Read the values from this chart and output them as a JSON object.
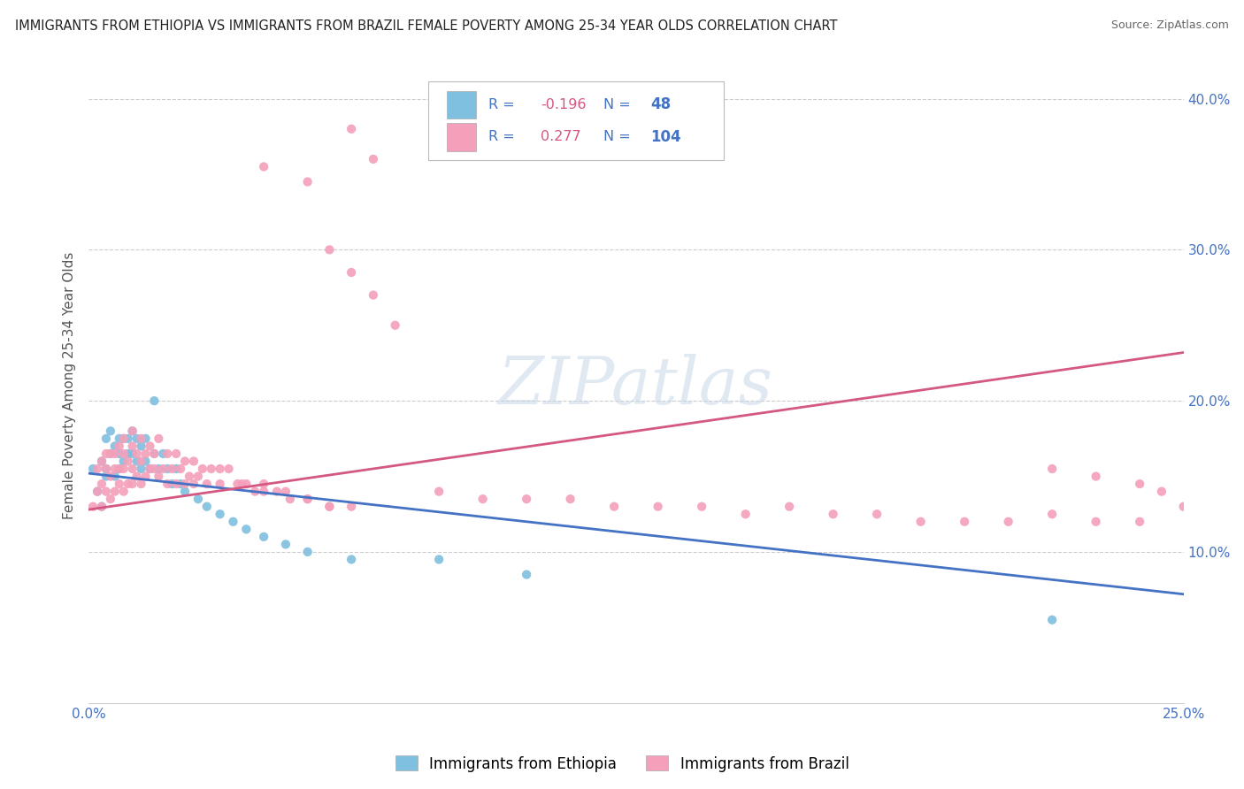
{
  "title": "IMMIGRANTS FROM ETHIOPIA VS IMMIGRANTS FROM BRAZIL FEMALE POVERTY AMONG 25-34 YEAR OLDS CORRELATION CHART",
  "source": "Source: ZipAtlas.com",
  "ylabel": "Female Poverty Among 25-34 Year Olds",
  "xlim": [
    0.0,
    0.25
  ],
  "ylim": [
    0.0,
    0.42
  ],
  "xticks": [
    0.0,
    0.05,
    0.1,
    0.15,
    0.2,
    0.25
  ],
  "xticklabels": [
    "0.0%",
    "",
    "",
    "",
    "",
    "25.0%"
  ],
  "yticks": [
    0.0,
    0.1,
    0.2,
    0.3,
    0.4
  ],
  "yticklabels": [
    "",
    "10.0%",
    "20.0%",
    "30.0%",
    "40.0%"
  ],
  "ethiopia_color": "#7fbfdf",
  "brazil_color": "#f4a0ba",
  "ethiopia_line_color": "#4472c4",
  "brazil_line_color": "#d45882",
  "legend_ethiopia_R": "-0.196",
  "legend_ethiopia_N": "48",
  "legend_brazil_R": "0.277",
  "legend_brazil_N": "104",
  "legend_label_ethiopia": "Immigrants from Ethiopia",
  "legend_label_brazil": "Immigrants from Brazil",
  "watermark": "ZIPatlas",
  "background_color": "#ffffff",
  "grid_color": "#cccccc",
  "tick_color": "#4472c4",
  "title_fontsize": 11,
  "eth_line_x0": 0.0,
  "eth_line_y0": 0.152,
  "eth_line_x1": 0.25,
  "eth_line_y1": 0.072,
  "bra_line_x0": 0.0,
  "bra_line_y0": 0.128,
  "bra_line_x1": 0.25,
  "bra_line_y1": 0.232,
  "ethiopia_x": [
    0.001,
    0.002,
    0.003,
    0.003,
    0.004,
    0.004,
    0.004,
    0.005,
    0.005,
    0.006,
    0.006,
    0.007,
    0.007,
    0.007,
    0.008,
    0.008,
    0.009,
    0.009,
    0.01,
    0.01,
    0.011,
    0.011,
    0.012,
    0.012,
    0.013,
    0.013,
    0.014,
    0.015,
    0.015,
    0.016,
    0.017,
    0.018,
    0.019,
    0.02,
    0.021,
    0.022,
    0.025,
    0.027,
    0.03,
    0.033,
    0.036,
    0.04,
    0.045,
    0.05,
    0.06,
    0.08,
    0.1,
    0.22
  ],
  "ethiopia_y": [
    0.155,
    0.14,
    0.13,
    0.16,
    0.155,
    0.175,
    0.15,
    0.165,
    0.18,
    0.15,
    0.17,
    0.155,
    0.165,
    0.175,
    0.16,
    0.175,
    0.165,
    0.175,
    0.165,
    0.18,
    0.16,
    0.175,
    0.155,
    0.17,
    0.16,
    0.175,
    0.155,
    0.165,
    0.2,
    0.155,
    0.165,
    0.155,
    0.145,
    0.155,
    0.145,
    0.14,
    0.135,
    0.13,
    0.125,
    0.12,
    0.115,
    0.11,
    0.105,
    0.1,
    0.095,
    0.095,
    0.085,
    0.055
  ],
  "brazil_x": [
    0.001,
    0.002,
    0.002,
    0.003,
    0.003,
    0.003,
    0.004,
    0.004,
    0.004,
    0.005,
    0.005,
    0.005,
    0.006,
    0.006,
    0.006,
    0.007,
    0.007,
    0.007,
    0.008,
    0.008,
    0.008,
    0.009,
    0.009,
    0.01,
    0.01,
    0.01,
    0.011,
    0.011,
    0.012,
    0.012,
    0.013,
    0.013,
    0.014,
    0.015,
    0.015,
    0.016,
    0.017,
    0.018,
    0.019,
    0.02,
    0.021,
    0.022,
    0.023,
    0.024,
    0.025,
    0.026,
    0.027,
    0.028,
    0.03,
    0.032,
    0.034,
    0.036,
    0.038,
    0.04,
    0.043,
    0.046,
    0.05,
    0.055,
    0.06,
    0.065,
    0.04,
    0.05,
    0.055,
    0.06,
    0.065,
    0.07,
    0.08,
    0.09,
    0.1,
    0.11,
    0.12,
    0.13,
    0.14,
    0.15,
    0.16,
    0.17,
    0.18,
    0.19,
    0.2,
    0.21,
    0.22,
    0.23,
    0.24,
    0.008,
    0.01,
    0.012,
    0.014,
    0.016,
    0.018,
    0.02,
    0.022,
    0.024,
    0.03,
    0.035,
    0.04,
    0.045,
    0.05,
    0.055,
    0.06,
    0.22,
    0.23,
    0.24,
    0.245,
    0.25
  ],
  "brazil_y": [
    0.13,
    0.14,
    0.155,
    0.13,
    0.145,
    0.16,
    0.14,
    0.155,
    0.165,
    0.135,
    0.15,
    0.165,
    0.14,
    0.155,
    0.165,
    0.145,
    0.155,
    0.17,
    0.14,
    0.155,
    0.165,
    0.145,
    0.16,
    0.145,
    0.155,
    0.17,
    0.15,
    0.165,
    0.145,
    0.16,
    0.15,
    0.165,
    0.155,
    0.155,
    0.165,
    0.15,
    0.155,
    0.145,
    0.155,
    0.145,
    0.155,
    0.145,
    0.15,
    0.145,
    0.15,
    0.155,
    0.145,
    0.155,
    0.145,
    0.155,
    0.145,
    0.145,
    0.14,
    0.145,
    0.14,
    0.135,
    0.135,
    0.13,
    0.38,
    0.36,
    0.355,
    0.345,
    0.3,
    0.285,
    0.27,
    0.25,
    0.14,
    0.135,
    0.135,
    0.135,
    0.13,
    0.13,
    0.13,
    0.125,
    0.13,
    0.125,
    0.125,
    0.12,
    0.12,
    0.12,
    0.125,
    0.12,
    0.12,
    0.175,
    0.18,
    0.175,
    0.17,
    0.175,
    0.165,
    0.165,
    0.16,
    0.16,
    0.155,
    0.145,
    0.14,
    0.14,
    0.135,
    0.13,
    0.13,
    0.155,
    0.15,
    0.145,
    0.14,
    0.13
  ]
}
